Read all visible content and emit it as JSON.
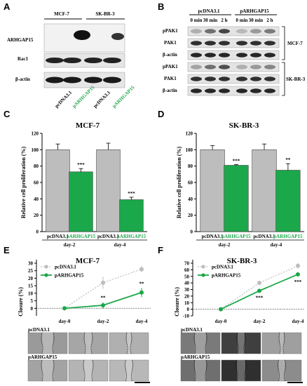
{
  "colors": {
    "green": "#1ba84a",
    "gray": "#bdbdbd",
    "dark": "#000000"
  },
  "panels": {
    "A": "A",
    "B": "B",
    "C": "C",
    "D": "D",
    "E": "E",
    "F": "F"
  },
  "blotA": {
    "cell_lines": [
      "MCF-7",
      "SK-BR-3"
    ],
    "rows": [
      "ARHGAP15",
      "Rac1",
      "β-actin"
    ],
    "lanes": [
      "pcDNA3.1",
      "pARHGAP15",
      "pcDNA3.1",
      "pARHGAP15"
    ]
  },
  "blotB": {
    "groups": [
      "pcDNA3.1",
      "pARHGAP15"
    ],
    "times": [
      "0 min",
      "30 min",
      "2 h",
      "0 min",
      "30 min",
      "2 h"
    ],
    "rows": [
      "pPAK1",
      "PAK1",
      "β-actin"
    ],
    "cell_lines": [
      "MCF-7",
      "SK-BR-3"
    ]
  },
  "chart_data": [
    {
      "type": "bar",
      "panel": "C",
      "title": "MCF-7",
      "ylabel": "Relative cell proliferation (%)",
      "ylim": [
        0,
        120
      ],
      "yticks": [
        "0",
        "20",
        "40",
        "60",
        "80",
        "100",
        "120"
      ],
      "categories": [
        "pcDNA3.1",
        "pARHGAP15",
        "pcDNA3.1",
        "pARHGAP15"
      ],
      "groups": [
        "day-2",
        "day-4"
      ],
      "values": [
        100,
        73,
        100,
        39
      ],
      "errors": [
        7,
        4,
        8,
        3
      ],
      "significance": [
        "",
        "***",
        "",
        "***"
      ]
    },
    {
      "type": "bar",
      "panel": "D",
      "title": "SK-BR-3",
      "ylabel": "Relative cell proliferation (%)",
      "ylim": [
        0,
        120
      ],
      "yticks": [
        "0",
        "20",
        "40",
        "60",
        "80",
        "100",
        "120"
      ],
      "categories": [
        "pcDNA3.1",
        "pARHGAP15",
        "pcDNA3.1",
        "pARHGAP15"
      ],
      "groups": [
        "day-2",
        "day-4"
      ],
      "values": [
        100,
        81,
        100,
        75
      ],
      "errors": [
        5,
        1,
        7,
        8
      ],
      "significance": [
        "",
        "***",
        "",
        "**"
      ]
    },
    {
      "type": "line",
      "panel": "E",
      "title": "MCF-7",
      "ylabel": "Closure (%)",
      "ylim": [
        -5,
        30
      ],
      "yticks": [
        "0",
        "5",
        "10",
        "15",
        "20",
        "25",
        "30"
      ],
      "x": [
        "day-0",
        "day-2",
        "day-4"
      ],
      "series": [
        {
          "name": "pcDNA3.1",
          "values": [
            0,
            17,
            26
          ],
          "errors": [
            0,
            4,
            2
          ]
        },
        {
          "name": "pARHGAP15",
          "values": [
            0,
            2,
            10.5
          ],
          "errors": [
            0,
            2,
            3
          ]
        }
      ],
      "significance": [
        "",
        "**",
        "**"
      ]
    },
    {
      "type": "line",
      "panel": "F",
      "title": "SK-BR-3",
      "ylabel": "Closure (%)",
      "ylim": [
        -10,
        70
      ],
      "yticks": [
        "-10",
        "0",
        "10",
        "20",
        "30",
        "40",
        "50",
        "60",
        "70"
      ],
      "x": [
        "day-0",
        "day-2",
        "day-4"
      ],
      "series": [
        {
          "name": "pcDNA3.1",
          "values": [
            0,
            40,
            66
          ],
          "errors": [
            0,
            2,
            4
          ]
        },
        {
          "name": "pARHGAP15",
          "values": [
            0,
            28,
            53
          ],
          "errors": [
            0,
            2,
            3
          ]
        }
      ],
      "significance": [
        "",
        "***",
        "***"
      ]
    }
  ],
  "micro": {
    "row_labels": [
      "pcDNA3.1",
      "pARHGAP15"
    ]
  }
}
